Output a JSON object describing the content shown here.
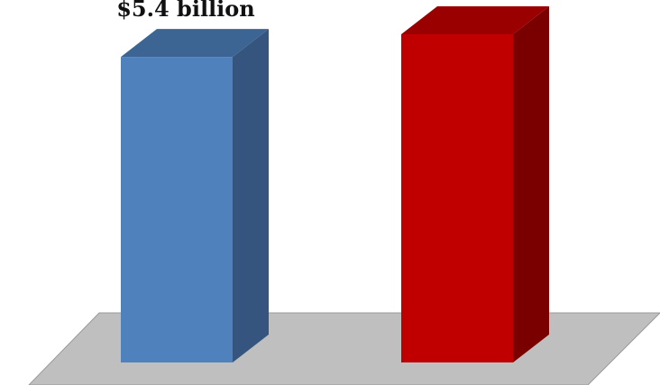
{
  "chart_data": {
    "type": "bar",
    "style": "3d-column",
    "categories": [
      "",
      ""
    ],
    "values": [
      5.4,
      5.8
    ],
    "data_labels": [
      "$5.4 billion",
      ""
    ],
    "colors": [
      "#4F81BD",
      "#C00000"
    ],
    "side_colors": [
      "#35557F",
      "#7A0000"
    ],
    "top_colors": [
      "#3C6594",
      "#9B0000"
    ],
    "floor_color": "#BFBFBF",
    "ylim": [
      0,
      5.8
    ],
    "grid": false,
    "legend": "none",
    "title": "",
    "xlabel": "",
    "ylabel": ""
  }
}
